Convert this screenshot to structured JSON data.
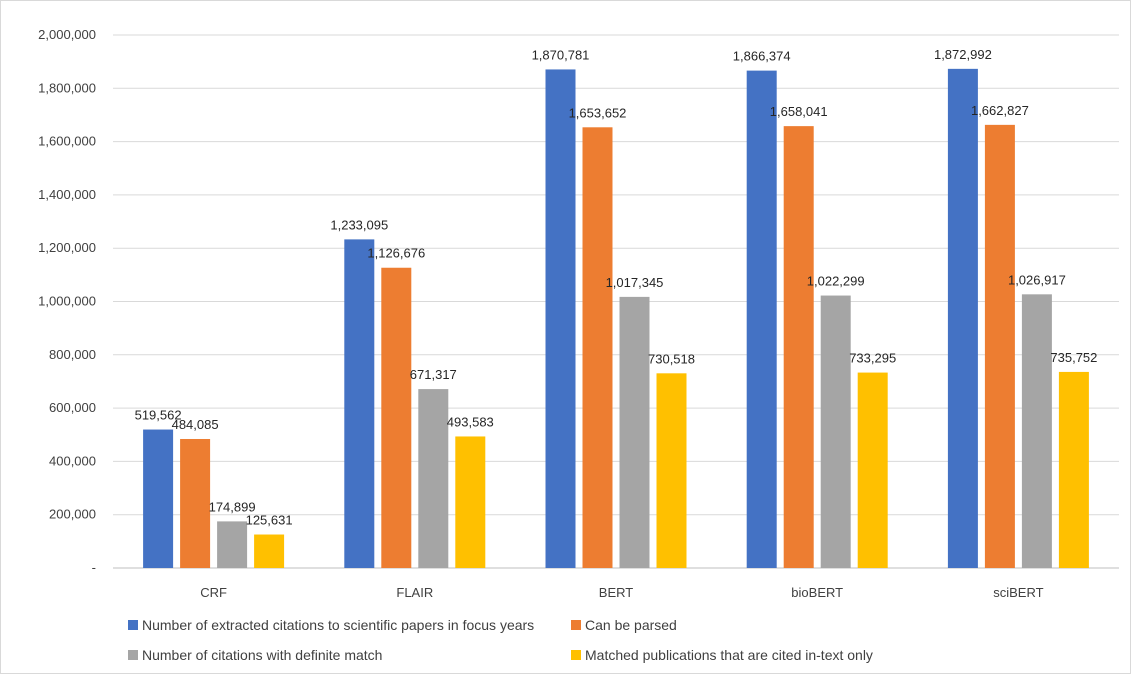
{
  "chart_data": {
    "type": "bar",
    "categories": [
      "CRF",
      "FLAIR",
      "BERT",
      "bioBERT",
      "sciBERT"
    ],
    "series": [
      {
        "name": "Number of extracted citations to scientific papers in focus years",
        "color": "#4472C4",
        "values": [
          519562,
          1233095,
          1870781,
          1866374,
          1872992
        ]
      },
      {
        "name": "Can be parsed",
        "color": "#ED7D31",
        "values": [
          484085,
          1126676,
          1653652,
          1658041,
          1662827
        ]
      },
      {
        "name": "Number of citations with definite match",
        "color": "#A5A5A5",
        "values": [
          174899,
          671317,
          1017345,
          1022299,
          1026917
        ]
      },
      {
        "name": "Matched publications that are cited in-text only",
        "color": "#FFC000",
        "values": [
          125631,
          493583,
          730518,
          733295,
          735752
        ]
      }
    ],
    "data_labels": [
      [
        "519,562",
        "1,233,095",
        "1,870,781",
        "1,866,374",
        "1,872,992"
      ],
      [
        "484,085",
        "1,126,676",
        "1,653,652",
        "1,658,041",
        "1,662,827"
      ],
      [
        "174,899",
        "671,317",
        "1,017,345",
        "1,022,299",
        "1,026,917"
      ],
      [
        "125,631",
        "493,583",
        "730,518",
        "733,295",
        "735,752"
      ]
    ],
    "y_ticks": [
      0,
      200000,
      400000,
      600000,
      800000,
      1000000,
      1200000,
      1400000,
      1600000,
      1800000,
      2000000
    ],
    "y_tick_labels": [
      "-",
      "200,000",
      "400,000",
      "600,000",
      "800,000",
      "1,000,000",
      "1,200,000",
      "1,400,000",
      "1,600,000",
      "1,800,000",
      "2,000,000"
    ],
    "ylim": [
      0,
      2000000
    ],
    "title": "",
    "xlabel": "",
    "ylabel": "",
    "grid": true,
    "legend_position": "bottom"
  }
}
